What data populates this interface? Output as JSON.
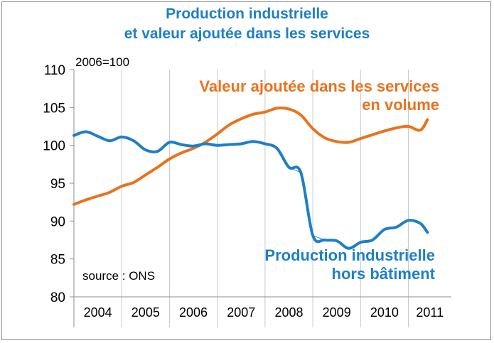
{
  "chart_data": {
    "type": "line",
    "title": "Production industrielle",
    "subtitle": "et valeur ajoutée dans les services",
    "unit_label": "2006=100",
    "ylim": [
      80,
      110
    ],
    "yticks": [
      "110",
      "105",
      "100",
      "95",
      "90",
      "85",
      "80"
    ],
    "yticks_values": [
      110,
      105,
      100,
      95,
      90,
      85,
      80
    ],
    "xlim": [
      2004.0,
      2011.9
    ],
    "categories": [
      "2004",
      "2005",
      "2006",
      "2007",
      "2008",
      "2009",
      "2010",
      "2011"
    ],
    "grid": "vertical",
    "source": "source : ONS",
    "annotations": {
      "services_line1": "Valeur ajoutée dans les services",
      "services_line2": "en volume",
      "industry_line1": "Production industrielle",
      "industry_line2": "hors bâtiment"
    },
    "series": [
      {
        "name": "Valeur ajoutée dans les services en volume",
        "color": "#e8731f",
        "x": [
          2004.0,
          2004.25,
          2004.5,
          2004.75,
          2005.0,
          2005.25,
          2005.5,
          2005.75,
          2006.0,
          2006.25,
          2006.5,
          2006.75,
          2007.0,
          2007.25,
          2007.5,
          2007.75,
          2008.0,
          2008.25,
          2008.5,
          2008.75,
          2009.0,
          2009.25,
          2009.5,
          2009.75,
          2010.0,
          2010.25,
          2010.5,
          2010.75,
          2011.0,
          2011.25,
          2011.4
        ],
        "values": [
          92.2,
          92.8,
          93.3,
          93.8,
          94.6,
          95.1,
          96.1,
          97.1,
          98.2,
          99.0,
          99.6,
          100.4,
          101.5,
          102.7,
          103.5,
          104.1,
          104.4,
          104.9,
          104.8,
          104.0,
          102.2,
          101.0,
          100.5,
          100.4,
          100.9,
          101.4,
          101.9,
          102.3,
          102.5,
          102.0,
          103.4
        ]
      },
      {
        "name": "Production industrielle hors bâtiment",
        "color": "#1f7fc6",
        "x": [
          2004.0,
          2004.25,
          2004.5,
          2004.75,
          2005.0,
          2005.25,
          2005.5,
          2005.75,
          2006.0,
          2006.25,
          2006.5,
          2006.75,
          2007.0,
          2007.25,
          2007.5,
          2007.75,
          2008.0,
          2008.25,
          2008.5,
          2008.75,
          2009.0,
          2009.25,
          2009.5,
          2009.75,
          2010.0,
          2010.25,
          2010.5,
          2010.75,
          2011.0,
          2011.25,
          2011.4
        ],
        "values": [
          101.3,
          101.8,
          101.2,
          100.6,
          101.1,
          100.6,
          99.4,
          99.2,
          100.4,
          100.1,
          99.9,
          100.2,
          100.0,
          100.1,
          100.2,
          100.5,
          100.2,
          99.6,
          97.1,
          96.4,
          88.1,
          87.5,
          87.4,
          86.4,
          87.2,
          87.5,
          88.9,
          89.2,
          90.1,
          89.7,
          88.5
        ]
      }
    ]
  }
}
